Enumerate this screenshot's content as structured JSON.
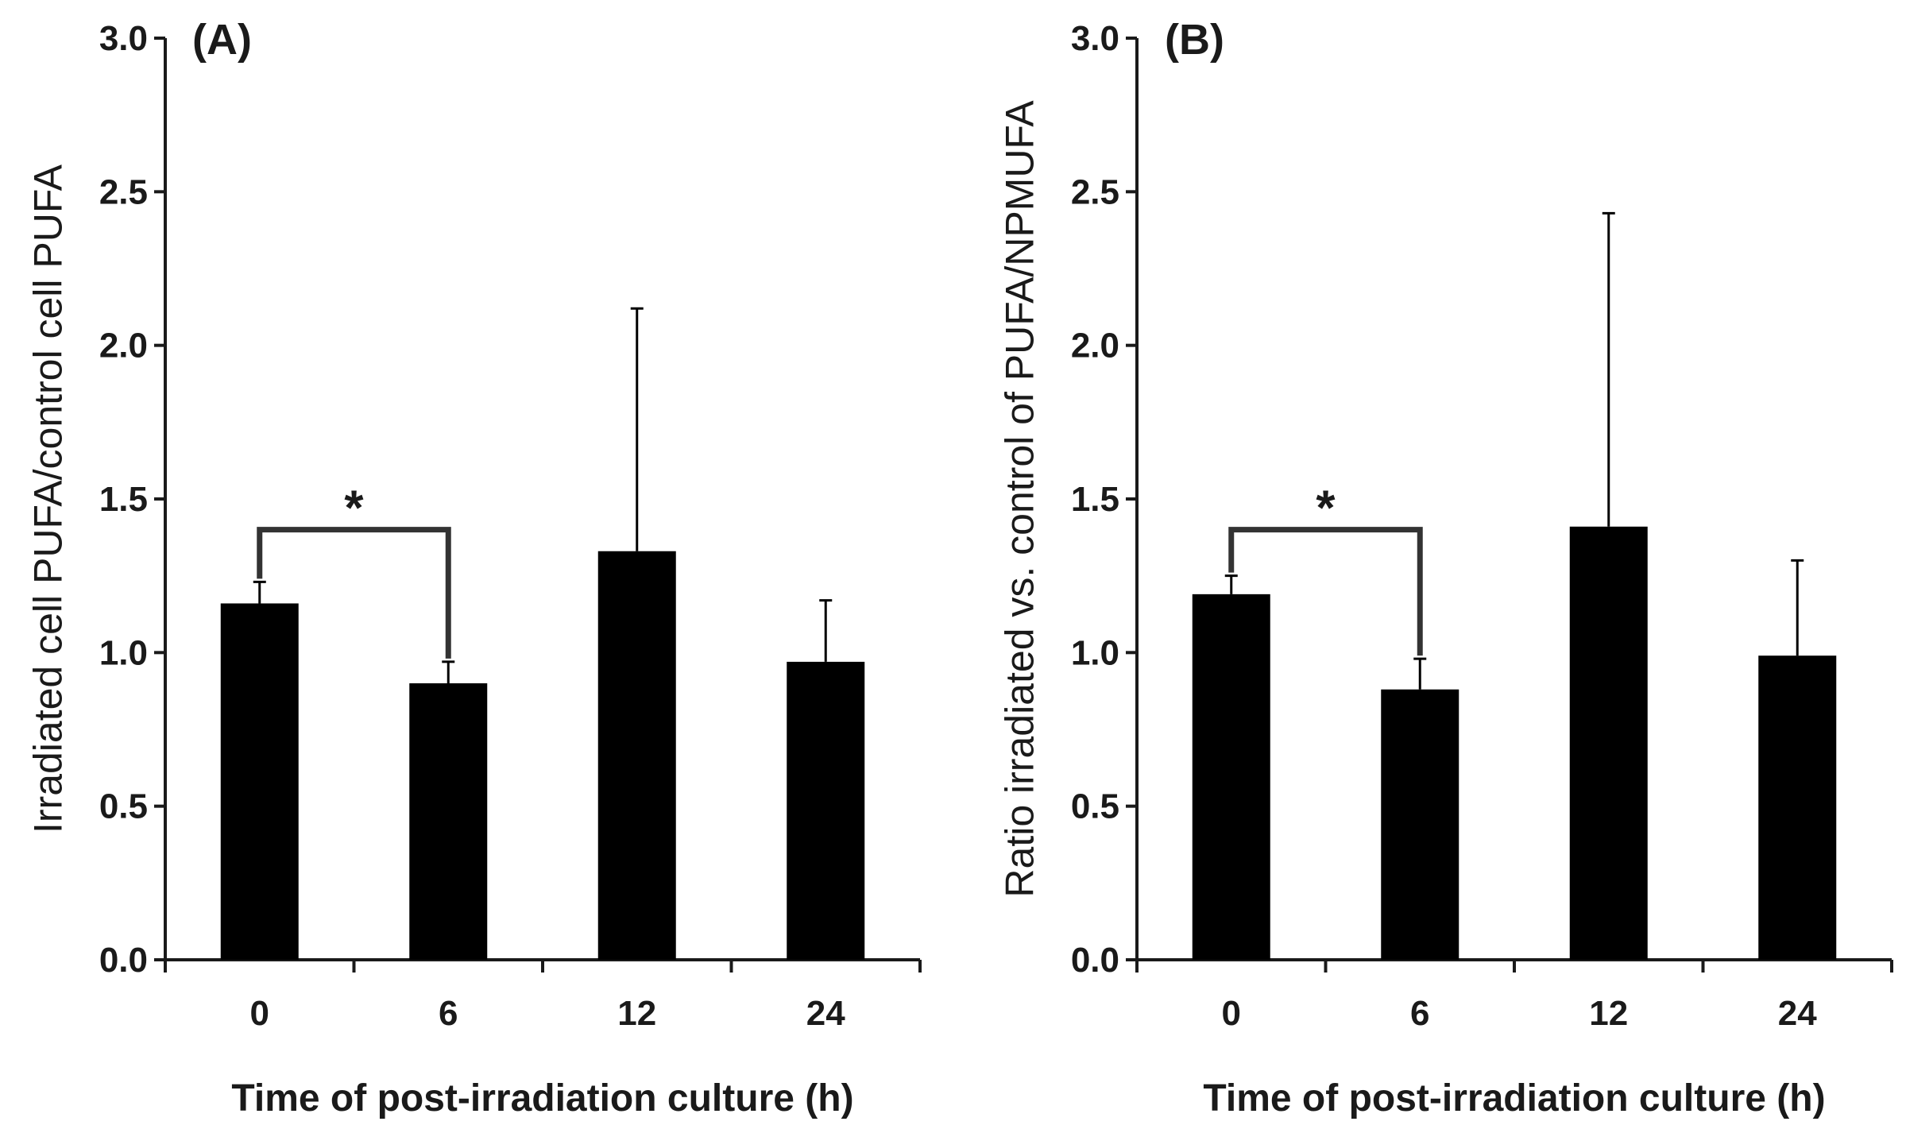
{
  "chart_data": [
    {
      "type": "bar",
      "panel_label": "(A)",
      "categories": [
        "0",
        "6",
        "12",
        "24"
      ],
      "values": [
        1.16,
        0.9,
        1.33,
        0.97
      ],
      "error_upper": [
        0.07,
        0.07,
        0.79,
        0.2
      ],
      "ylabel": "Irradiated cell PUFA/control cell PUFA",
      "xlabel": "Time of post-irradiation culture (h)",
      "ylim": [
        0,
        3.0
      ],
      "yticks": [
        "0.0",
        "0.5",
        "1.0",
        "1.5",
        "2.0",
        "2.5",
        "3.0"
      ],
      "significance": {
        "from": 0,
        "to": 1,
        "label": "*",
        "level": 1.4
      }
    },
    {
      "type": "bar",
      "panel_label": "(B)",
      "categories": [
        "0",
        "6",
        "12",
        "24"
      ],
      "values": [
        1.19,
        0.88,
        1.41,
        0.99
      ],
      "error_upper": [
        0.06,
        0.1,
        1.02,
        0.31
      ],
      "ylabel": "Ratio irradiated vs. control of PUFA/NPMUFA",
      "xlabel": "Time of post-irradiation culture (h)",
      "ylim": [
        0,
        3.0
      ],
      "yticks": [
        "0.0",
        "0.5",
        "1.0",
        "1.5",
        "2.0",
        "2.5",
        "3.0"
      ],
      "significance": {
        "from": 0,
        "to": 1,
        "label": "*",
        "level": 1.4
      }
    }
  ],
  "colors": {
    "bar": "#000000",
    "axis": "#1a1a1a",
    "bracket": "#333333"
  }
}
